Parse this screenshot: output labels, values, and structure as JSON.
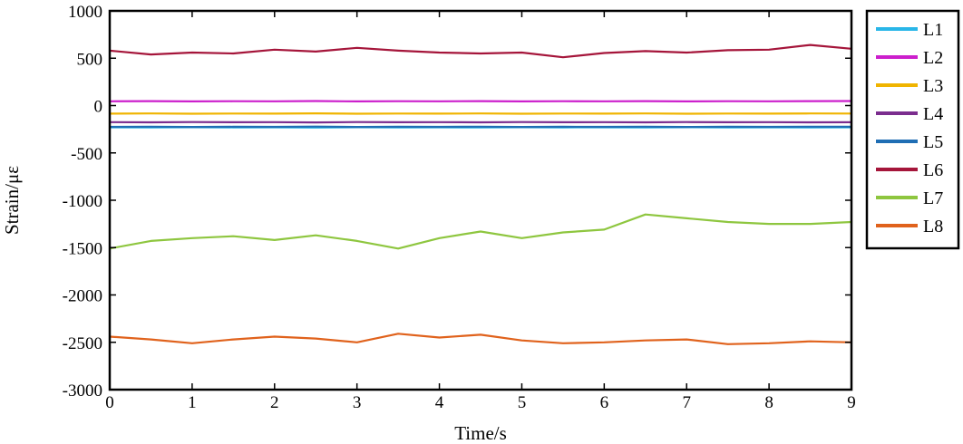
{
  "chart_data": {
    "type": "line",
    "xlabel": "Time/s",
    "ylabel": "Strain/με",
    "xlim": [
      0,
      9
    ],
    "ylim": [
      -3000,
      1000
    ],
    "xticks": [
      0,
      1,
      2,
      3,
      4,
      5,
      6,
      7,
      8,
      9
    ],
    "yticks": [
      1000,
      500,
      0,
      -500,
      -1000,
      -1500,
      -2000,
      -2500,
      -3000
    ],
    "grid": false,
    "legend_position": "outside-right",
    "x": [
      0.0,
      0.5,
      1.0,
      1.5,
      2.0,
      2.5,
      3.0,
      3.5,
      4.0,
      4.5,
      5.0,
      5.5,
      6.0,
      6.5,
      7.0,
      7.5,
      8.0,
      8.5,
      9.0
    ],
    "series": [
      {
        "name": "L1",
        "color": "#29b6e8",
        "values": [
          -230,
          -232,
          -229,
          -231,
          -230,
          -233,
          -229,
          -231,
          -230,
          -232,
          -229,
          -231,
          -230,
          -232,
          -229,
          -231,
          -230,
          -232,
          -230
        ]
      },
      {
        "name": "L2",
        "color": "#cc1fcc",
        "values": [
          45,
          47,
          44,
          46,
          45,
          48,
          44,
          46,
          45,
          47,
          44,
          46,
          45,
          47,
          44,
          46,
          45,
          47,
          48
        ]
      },
      {
        "name": "L3",
        "color": "#f0b400",
        "values": [
          -85,
          -83,
          -86,
          -84,
          -85,
          -82,
          -86,
          -84,
          -85,
          -83,
          -86,
          -84,
          -85,
          -83,
          -86,
          -84,
          -85,
          -83,
          -84
        ]
      },
      {
        "name": "L4",
        "color": "#7b2d8e",
        "values": [
          -175,
          -177,
          -174,
          -176,
          -175,
          -178,
          -174,
          -176,
          -175,
          -177,
          -174,
          -176,
          -175,
          -177,
          -174,
          -176,
          -175,
          -177,
          -176
        ]
      },
      {
        "name": "L5",
        "color": "#1f6eb4",
        "values": [
          -225,
          -223,
          -226,
          -224,
          -225,
          -222,
          -226,
          -224,
          -225,
          -223,
          -226,
          -224,
          -225,
          -223,
          -226,
          -224,
          -225,
          -223,
          -224
        ]
      },
      {
        "name": "L6",
        "color": "#a5153a",
        "values": [
          580,
          540,
          560,
          550,
          590,
          570,
          610,
          580,
          560,
          550,
          560,
          510,
          555,
          575,
          560,
          585,
          590,
          640,
          600
        ]
      },
      {
        "name": "L7",
        "color": "#8ec63f",
        "values": [
          -1510,
          -1430,
          -1400,
          -1380,
          -1420,
          -1370,
          -1430,
          -1510,
          -1400,
          -1330,
          -1400,
          -1340,
          -1310,
          -1150,
          -1190,
          -1230,
          -1250,
          -1250,
          -1230
        ]
      },
      {
        "name": "L8",
        "color": "#e0621c",
        "values": [
          -2440,
          -2470,
          -2510,
          -2470,
          -2440,
          -2460,
          -2500,
          -2410,
          -2450,
          -2420,
          -2480,
          -2510,
          -2500,
          -2480,
          -2470,
          -2520,
          -2510,
          -2490,
          -2500
        ]
      }
    ]
  }
}
